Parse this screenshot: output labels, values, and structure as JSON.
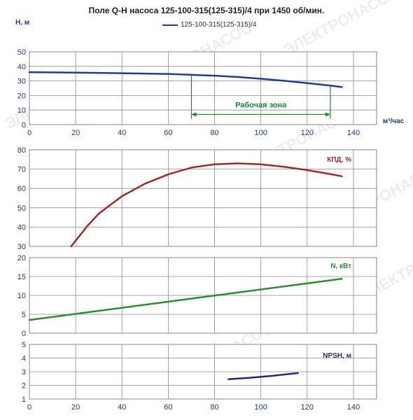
{
  "title": "Поле Q-H насоса 125-100-315(125-315)/4 при 1450 об/мин.",
  "legend": {
    "label": "125-100-315(125-315)/4",
    "color": "#1f3c9b"
  },
  "watermark_text": "ЭЛЕКТРОНАСОС",
  "chart_data": [
    {
      "type": "line",
      "name": "head",
      "ylabel": "Н, м",
      "xlabel": "м³/час",
      "xlim": [
        0,
        150
      ],
      "ylim": [
        0,
        50
      ],
      "x_ticks": [
        0,
        20,
        40,
        60,
        80,
        100,
        120,
        140
      ],
      "y_ticks": [
        0,
        10,
        20,
        30,
        40,
        50
      ],
      "series": [
        {
          "name": "125-100-315(125-315)/4",
          "color": "#1f3c9b",
          "x": [
            0,
            20,
            40,
            60,
            70,
            80,
            90,
            100,
            110,
            120,
            130,
            135
          ],
          "y": [
            36,
            35.7,
            35.3,
            34.8,
            34.2,
            33.6,
            32.7,
            31.5,
            30.1,
            28.5,
            26.8,
            25.8
          ]
        }
      ],
      "annotation": {
        "text": "Рабочая зона",
        "x_start": 70,
        "x_end": 130,
        "y": 7,
        "color": "#1a8a2a"
      }
    },
    {
      "type": "line",
      "name": "efficiency",
      "ylabel": "",
      "curve_label": "КПД, %",
      "xlim": [
        0,
        150
      ],
      "ylim": [
        30,
        80
      ],
      "y_ticks": [
        30,
        40,
        50,
        60,
        70,
        80
      ],
      "series": [
        {
          "name": "КПД, %",
          "color": "#a52a2a",
          "x": [
            18,
            25,
            30,
            40,
            50,
            60,
            70,
            80,
            90,
            100,
            110,
            120,
            130,
            135
          ],
          "y": [
            30,
            40.5,
            47,
            56,
            62.5,
            67.3,
            70.8,
            72.5,
            73,
            72.5,
            71.2,
            69.5,
            67.4,
            66.3
          ]
        }
      ]
    },
    {
      "type": "line",
      "name": "power",
      "ylabel": "",
      "curve_label": "N, кВт",
      "xlim": [
        0,
        150
      ],
      "ylim": [
        0,
        20
      ],
      "y_ticks": [
        0,
        5,
        10,
        15,
        20
      ],
      "series": [
        {
          "name": "N, кВт",
          "color": "#2e8b2e",
          "x": [
            0,
            135
          ],
          "y": [
            3.5,
            14.4
          ]
        }
      ]
    },
    {
      "type": "line",
      "name": "npsh",
      "ylabel": "",
      "curve_label": "NPSH, м",
      "xlim": [
        0,
        150
      ],
      "ylim": [
        1,
        5
      ],
      "x_ticks": [
        0,
        20,
        40,
        60,
        80,
        100,
        120,
        140
      ],
      "y_ticks": [
        1,
        2,
        3,
        4,
        5
      ],
      "series": [
        {
          "name": "NPSH, м",
          "color": "#3a1f7a",
          "x": [
            86,
            95,
            105,
            116
          ],
          "y": [
            2.45,
            2.55,
            2.7,
            2.9
          ]
        }
      ]
    }
  ]
}
